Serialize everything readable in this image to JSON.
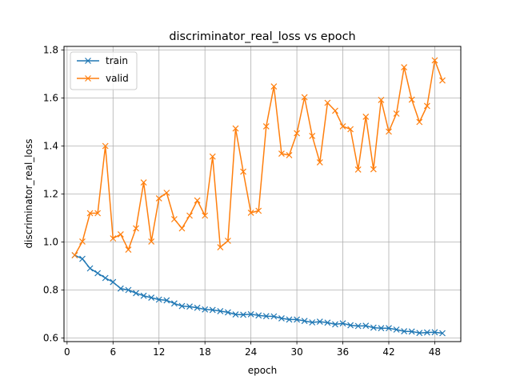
{
  "chart_data": {
    "type": "line",
    "title": "discriminator_real_loss vs epoch",
    "xlabel": "epoch",
    "ylabel": "discriminator_real_loss",
    "xlim": [
      -0.4,
      51.4
    ],
    "ylim": [
      0.585,
      1.815
    ],
    "xticks": [
      0,
      6,
      12,
      18,
      24,
      30,
      36,
      42,
      48
    ],
    "yticks": [
      0.6,
      0.8,
      1.0,
      1.2,
      1.4,
      1.6,
      1.8
    ],
    "ytick_labels": [
      "0.6",
      "0.8",
      "1.0",
      "1.2",
      "1.4",
      "1.6",
      "1.8"
    ],
    "grid": true,
    "legend_position": "upper-left",
    "x": [
      1,
      2,
      3,
      4,
      5,
      6,
      7,
      8,
      9,
      10,
      11,
      12,
      13,
      14,
      15,
      16,
      17,
      18,
      19,
      20,
      21,
      22,
      23,
      24,
      25,
      26,
      27,
      28,
      29,
      30,
      31,
      32,
      33,
      34,
      35,
      36,
      37,
      38,
      39,
      40,
      41,
      42,
      43,
      44,
      45,
      46,
      47,
      48,
      49
    ],
    "series": [
      {
        "name": "train",
        "color": "#1f77b4",
        "marker": "x",
        "values": [
          0.945,
          0.93,
          0.89,
          0.87,
          0.85,
          0.833,
          0.806,
          0.8,
          0.787,
          0.776,
          0.768,
          0.76,
          0.757,
          0.744,
          0.733,
          0.731,
          0.726,
          0.719,
          0.717,
          0.712,
          0.707,
          0.698,
          0.697,
          0.699,
          0.694,
          0.691,
          0.69,
          0.682,
          0.677,
          0.677,
          0.671,
          0.665,
          0.668,
          0.664,
          0.657,
          0.661,
          0.653,
          0.65,
          0.651,
          0.643,
          0.641,
          0.641,
          0.635,
          0.628,
          0.627,
          0.621,
          0.623,
          0.624,
          0.62
        ]
      },
      {
        "name": "valid",
        "color": "#ff7f0e",
        "marker": "x",
        "values": [
          0.945,
          1.002,
          1.12,
          1.12,
          1.4,
          1.015,
          1.032,
          0.968,
          1.057,
          1.248,
          1.002,
          1.182,
          1.205,
          1.095,
          1.057,
          1.11,
          1.173,
          1.11,
          1.356,
          0.978,
          1.005,
          1.473,
          1.293,
          1.122,
          1.13,
          1.482,
          1.648,
          1.368,
          1.362,
          1.453,
          1.603,
          1.442,
          1.332,
          1.58,
          1.547,
          1.482,
          1.47,
          1.302,
          1.522,
          1.303,
          1.592,
          1.46,
          1.535,
          1.728,
          1.593,
          1.5,
          1.567,
          1.757,
          1.673
        ]
      }
    ]
  }
}
